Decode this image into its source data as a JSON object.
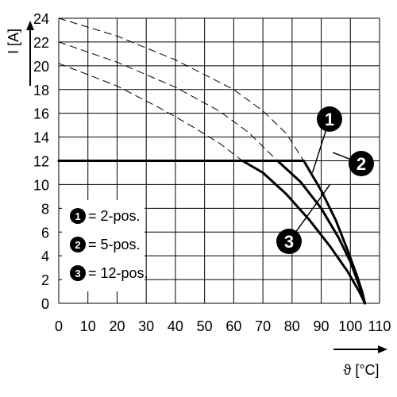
{
  "chart_data": {
    "type": "line",
    "title": "",
    "xlabel": "ϑ [°C]",
    "ylabel": "I [A]",
    "xlim": [
      0,
      110
    ],
    "ylim": [
      0,
      24
    ],
    "x_ticks": [
      "0",
      "10",
      "20",
      "30",
      "40",
      "50",
      "60",
      "70",
      "80",
      "90",
      "100",
      "110"
    ],
    "y_ticks": [
      "0",
      "2",
      "4",
      "6",
      "8",
      "10",
      "12",
      "14",
      "16",
      "18",
      "20",
      "22",
      "24"
    ],
    "grid": true,
    "legend_position": "bottom-left",
    "series": [
      {
        "name": "2-pos.",
        "badge": "1",
        "style": "solid",
        "points": [
          [
            0,
            12
          ],
          [
            84,
            12
          ],
          [
            90,
            9.5
          ],
          [
            95,
            7
          ],
          [
            99,
            4.5
          ],
          [
            102,
            2.5
          ],
          [
            104,
            1
          ],
          [
            105,
            0
          ]
        ]
      },
      {
        "name": "5-pos.",
        "badge": "2",
        "style": "solid",
        "points": [
          [
            0,
            12
          ],
          [
            75,
            12
          ],
          [
            83,
            10.2
          ],
          [
            90,
            8
          ],
          [
            96,
            5.5
          ],
          [
            100,
            3.5
          ],
          [
            103,
            1.5
          ],
          [
            105,
            0
          ]
        ]
      },
      {
        "name": "12-pos.",
        "badge": "3",
        "style": "solid",
        "points": [
          [
            0,
            12
          ],
          [
            63,
            12
          ],
          [
            70,
            11
          ],
          [
            78,
            9.2
          ],
          [
            86,
            7
          ],
          [
            93,
            4.8
          ],
          [
            99,
            2.7
          ],
          [
            103,
            1
          ],
          [
            105,
            0
          ]
        ]
      },
      {
        "name": "",
        "style": "dashed",
        "points": [
          [
            0,
            24
          ],
          [
            20,
            22.5
          ],
          [
            40,
            20.5
          ],
          [
            60,
            18
          ],
          [
            70,
            16.2
          ],
          [
            78,
            14.3
          ],
          [
            84,
            12
          ]
        ]
      },
      {
        "name": "",
        "style": "dashed",
        "points": [
          [
            0,
            22
          ],
          [
            20,
            20.3
          ],
          [
            40,
            18.2
          ],
          [
            55,
            16.2
          ],
          [
            65,
            14.4
          ],
          [
            75,
            12
          ]
        ]
      },
      {
        "name": "",
        "style": "dashed",
        "points": [
          [
            0,
            20.2
          ],
          [
            20,
            18.3
          ],
          [
            35,
            16.4
          ],
          [
            45,
            15
          ],
          [
            55,
            13.5
          ],
          [
            63,
            12
          ]
        ]
      }
    ],
    "legend": [
      {
        "badge": "1",
        "label": "= 2-pos."
      },
      {
        "badge": "2",
        "label": "= 5-pos."
      },
      {
        "badge": "3",
        "label": "= 12-pos."
      }
    ],
    "curve_callouts": [
      {
        "badge": "1",
        "target": [
          87,
          11
        ]
      },
      {
        "badge": "2",
        "target": [
          94,
          12.7
        ]
      },
      {
        "badge": "3",
        "target": [
          93,
          10
        ]
      }
    ],
    "colors": {
      "grid": "#000000",
      "line": "#000000",
      "badge_fill": "#000000",
      "badge_text": "#ffffff"
    }
  }
}
